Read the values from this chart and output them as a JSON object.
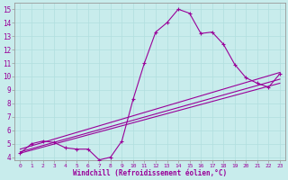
{
  "xlabel": "Windchill (Refroidissement éolien,°C)",
  "bg_color": "#c8ecec",
  "grid_color": "#b0dede",
  "line_color": "#990099",
  "spine_color": "#999999",
  "xlim": [
    -0.5,
    23.5
  ],
  "ylim": [
    3.8,
    15.5
  ],
  "xticks": [
    0,
    1,
    2,
    3,
    4,
    5,
    6,
    7,
    8,
    9,
    10,
    11,
    12,
    13,
    14,
    15,
    16,
    17,
    18,
    19,
    20,
    21,
    22,
    23
  ],
  "yticks": [
    4,
    5,
    6,
    7,
    8,
    9,
    10,
    11,
    12,
    13,
    14,
    15
  ],
  "main_x": [
    0,
    1,
    2,
    3,
    4,
    5,
    6,
    7,
    8,
    9,
    10,
    11,
    12,
    13,
    14,
    15,
    16,
    17,
    18,
    19,
    20,
    21,
    22,
    23
  ],
  "main_y": [
    4.3,
    5.0,
    5.2,
    5.1,
    4.7,
    4.6,
    4.6,
    3.8,
    4.0,
    5.2,
    8.3,
    11.0,
    13.3,
    14.0,
    15.0,
    14.7,
    13.2,
    13.3,
    12.4,
    10.9,
    9.9,
    9.5,
    9.2,
    10.2
  ],
  "line1_x": [
    0,
    23
  ],
  "line1_y": [
    4.3,
    9.5
  ],
  "line2_x": [
    0,
    23
  ],
  "line2_y": [
    4.4,
    9.8
  ],
  "line3_x": [
    0,
    23
  ],
  "line3_y": [
    4.6,
    10.3
  ]
}
